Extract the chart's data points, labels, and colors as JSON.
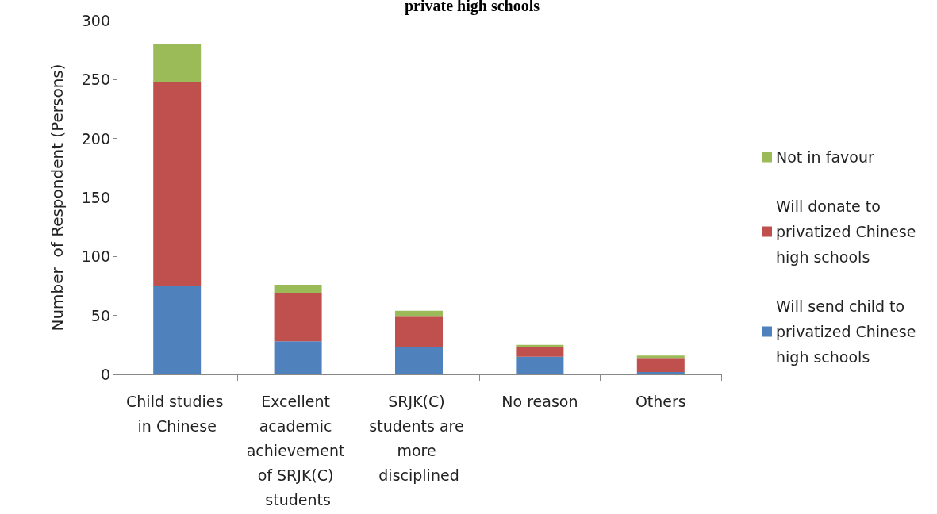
{
  "chart_data": {
    "type": "bar",
    "title": "private high schools",
    "ylabel": "Number  of Respondent (Persons)",
    "categories": [
      "Child studies in Chinese",
      "Excellent academic achievement of SRJK(C) students",
      "SRJK(C) students are more disciplined",
      "No reason",
      "Others"
    ],
    "stacked": true,
    "ylim": [
      0,
      300
    ],
    "yticks": [
      0,
      50,
      100,
      150,
      200,
      250,
      300
    ],
    "grid": false,
    "legend": "right",
    "series": [
      {
        "name": "Will send child to privatized Chinese high schools",
        "color": "#4f81bd",
        "values": [
          75,
          28,
          23,
          15,
          2
        ]
      },
      {
        "name": "Will donate to privatized Chinese high schools",
        "color": "#c0504d",
        "values": [
          173,
          41,
          26,
          8,
          12
        ]
      },
      {
        "name": "Not in favour",
        "color": "#9bbb59",
        "values": [
          32,
          7,
          5,
          2,
          2
        ]
      }
    ]
  }
}
